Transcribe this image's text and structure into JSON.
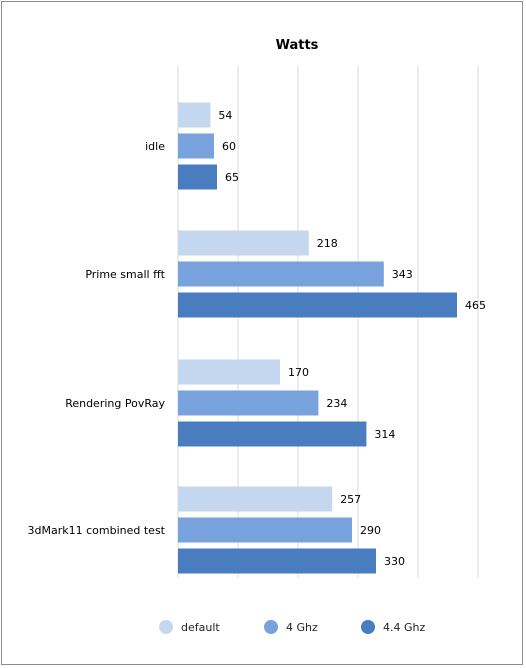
{
  "chart_data": {
    "type": "bar",
    "orientation": "horizontal",
    "title": "Watts",
    "xlabel": "",
    "ylabel": "",
    "xlim": [
      0,
      500
    ],
    "x_gridlines": [
      0,
      100,
      200,
      300,
      400,
      500
    ],
    "x_tick_labels_visible": false,
    "grid": true,
    "legend_position": "bottom",
    "categories": [
      "idle",
      "Prime small fft",
      "Rendering PovRay",
      "3dMark11 combined test"
    ],
    "series": [
      {
        "name": "default",
        "color": "#c5d7ef",
        "values": [
          54,
          218,
          170,
          257
        ]
      },
      {
        "name": "4 Ghz",
        "color": "#77a2dc",
        "values": [
          60,
          343,
          234,
          290
        ]
      },
      {
        "name": "4.4 Ghz",
        "color": "#4a7cc0",
        "values": [
          65,
          465,
          314,
          330
        ]
      }
    ]
  }
}
